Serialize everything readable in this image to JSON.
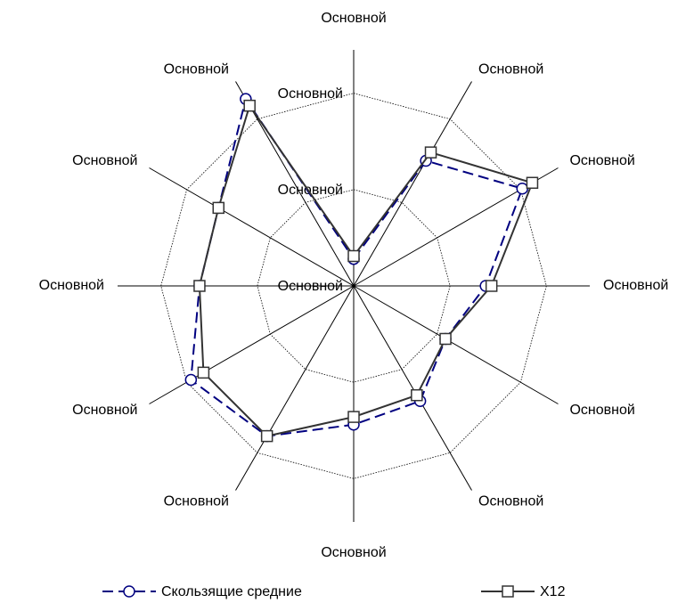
{
  "chart_data": {
    "type": "radar",
    "categories": [
      "Основной",
      "Основной",
      "Основной",
      "Основной",
      "Основной",
      "Основной",
      "Основной",
      "Основной",
      "Основной",
      "Основной",
      "Основной",
      "Основной"
    ],
    "rlim": [
      0,
      2.45
    ],
    "rticks": [
      {
        "value": 0,
        "label": "Основной"
      },
      {
        "value": 1,
        "label": "Основной"
      },
      {
        "value": 2,
        "label": "Основной"
      }
    ],
    "series": [
      {
        "name": "Скользящие средние",
        "color": "#000080",
        "values": [
          0.28,
          1.5,
          2.02,
          1.37,
          1.1,
          1.38,
          1.44,
          1.8,
          1.95,
          1.6,
          1.62,
          2.24
        ]
      },
      {
        "name": "X12",
        "color": "#333333",
        "values": [
          0.31,
          1.6,
          2.14,
          1.43,
          1.1,
          1.31,
          1.36,
          1.8,
          1.8,
          1.6,
          1.62,
          2.16
        ]
      }
    ]
  }
}
